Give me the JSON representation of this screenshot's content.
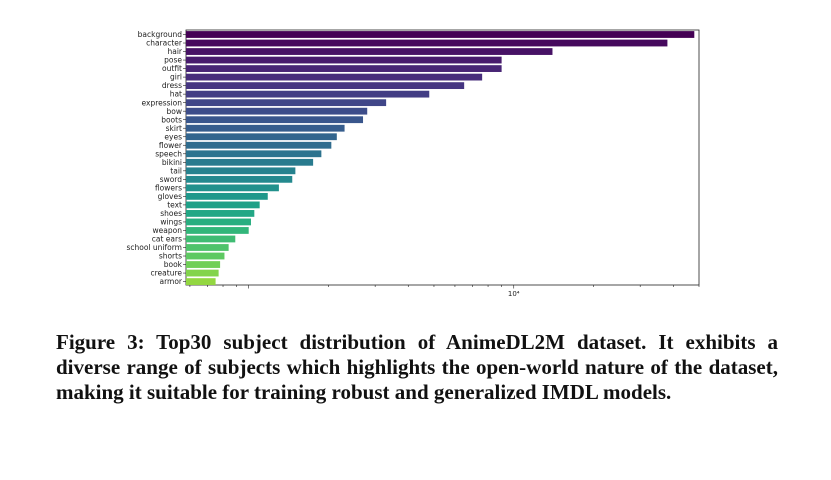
{
  "chart_data": {
    "type": "bar",
    "orientation": "horizontal",
    "xscale": "log",
    "categories": [
      "background",
      "character",
      "hair",
      "pose",
      "outfit",
      "girl",
      "dress",
      "hat",
      "expression",
      "bow",
      "boots",
      "skirt",
      "eyes",
      "flower",
      "speech",
      "bikini",
      "tail",
      "sword",
      "flowers",
      "gloves",
      "text",
      "shoes",
      "wings",
      "weapon",
      "cat ears",
      "school uniform",
      "shorts",
      "book",
      "creature",
      "armor"
    ],
    "values": [
      48000,
      38000,
      14000,
      9000,
      9000,
      7600,
      6500,
      4800,
      3300,
      2800,
      2700,
      2300,
      2150,
      2050,
      1880,
      1750,
      1500,
      1460,
      1300,
      1180,
      1100,
      1050,
      1020,
      1000,
      890,
      840,
      810,
      780,
      770,
      750
    ],
    "xlim": [
      580,
      50000
    ],
    "xtick_labels": [
      "10⁴"
    ],
    "xticks": [
      10000
    ],
    "bar_colors": [
      "#440154",
      "#46095d",
      "#471265",
      "#481b6d",
      "#482575",
      "#472d7b",
      "#453581",
      "#433d84",
      "#404688",
      "#3d4d8a",
      "#39568c",
      "#365d8d",
      "#32658e",
      "#2f6c8e",
      "#2c738e",
      "#297b8e",
      "#26828e",
      "#24898e",
      "#21918c",
      "#1f988b",
      "#1fa088",
      "#22a785",
      "#28ae80",
      "#32b67a",
      "#3fbc73",
      "#4ec36b",
      "#5ec962",
      "#70cf57",
      "#83d44c",
      "#93d741"
    ],
    "grid": false,
    "legend": "none"
  },
  "caption": {
    "text": "Figure 3: Top30 subject distribution of AnimeDL2M dataset. It exhibits a diverse range of subjects which highlights the open-world nature of the dataset, making it suitable for training robust and generalized IMDL models."
  }
}
